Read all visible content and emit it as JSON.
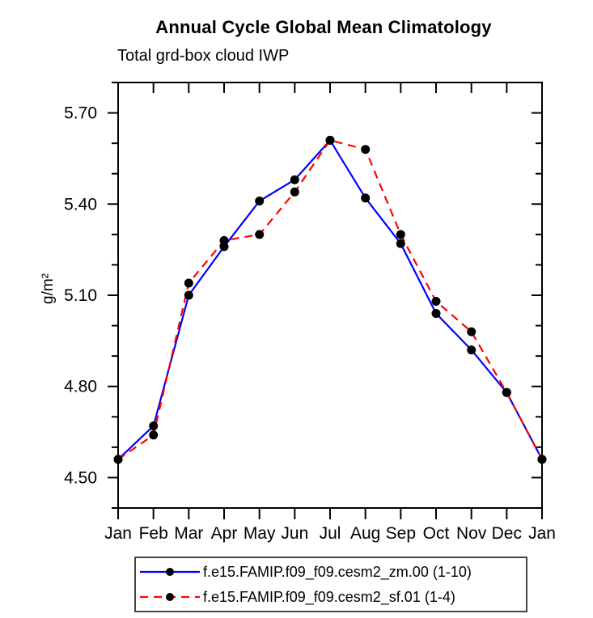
{
  "chart_data": {
    "type": "line",
    "title": "Annual Cycle Global Mean Climatology",
    "subtitle": "Total grd-box cloud IWP",
    "ylabel": "g/m²",
    "xlabel": "",
    "categories": [
      "Jan",
      "Feb",
      "Mar",
      "Apr",
      "May",
      "Jun",
      "Jul",
      "Aug",
      "Sep",
      "Oct",
      "Nov",
      "Dec",
      "Jan"
    ],
    "series": [
      {
        "name": "f.e15.FAMIP.f09_f09.cesm2_zm.00 (1-10)",
        "color": "#0000ff",
        "line_style": "solid",
        "marker": "filled-circle",
        "marker_color": "#000000",
        "values": [
          4.56,
          4.67,
          5.1,
          5.26,
          5.41,
          5.48,
          5.61,
          5.42,
          5.27,
          5.04,
          4.92,
          4.78,
          4.56
        ]
      },
      {
        "name": "f.e15.FAMIP.f09_f09.cesm2_sf.01 (1-4)",
        "color": "#ff0000",
        "line_style": "dashed",
        "marker": "filled-circle",
        "marker_color": "#000000",
        "values": [
          4.56,
          4.64,
          5.14,
          5.28,
          5.3,
          5.44,
          5.61,
          5.58,
          5.3,
          5.08,
          4.98,
          4.78,
          4.56
        ]
      }
    ],
    "ylim": [
      4.4,
      5.8
    ],
    "yticks_major": [
      4.5,
      4.8,
      5.1,
      5.4,
      5.7
    ],
    "ytick_labels": [
      "4.50",
      "4.80",
      "5.10",
      "5.40",
      "5.70"
    ],
    "yminor_step": 0.1,
    "grid": false,
    "legend_position": "bottom",
    "axis_color": "#000000",
    "text_color": "#000000"
  }
}
